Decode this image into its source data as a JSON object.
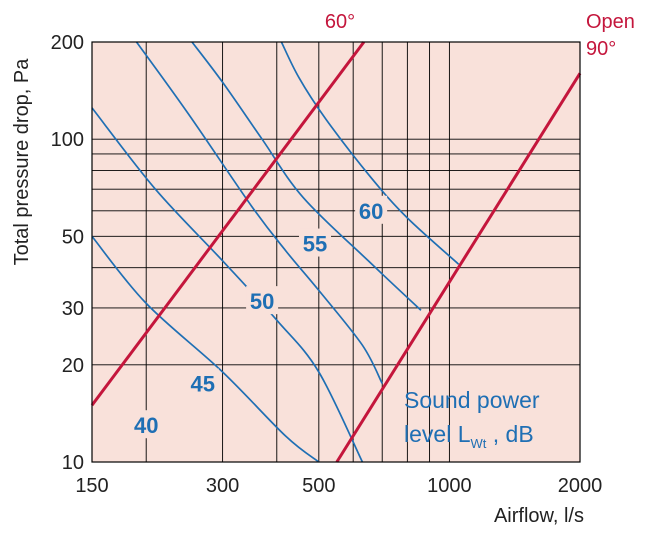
{
  "chart_data": {
    "type": "line",
    "xlabel": "Airflow, l/s",
    "ylabel": "Total pressure drop, Pa",
    "xscale": "log",
    "yscale": "log",
    "xlim": [
      150,
      2000
    ],
    "ylim": [
      10,
      200
    ],
    "x_ticks": [
      150,
      300,
      500,
      1000,
      2000
    ],
    "y_ticks": [
      10,
      20,
      30,
      50,
      100,
      200
    ],
    "x_grid": [
      150,
      200,
      300,
      400,
      500,
      600,
      700,
      800,
      900,
      1000,
      2000
    ],
    "y_grid": [
      10,
      20,
      30,
      40,
      50,
      60,
      70,
      80,
      90,
      100,
      200
    ],
    "grid": true,
    "colors": {
      "background": "#f9e1da",
      "grid": "#000000",
      "damper": "#c4163c",
      "sound": "#1f6fb4",
      "label": "#1f6fb4"
    },
    "damper_lines": [
      {
        "label": "60°",
        "points": [
          [
            150,
            15
          ],
          [
            635,
            200
          ]
        ]
      },
      {
        "label": "Open\n90°",
        "points": [
          [
            550,
            10
          ],
          [
            2000,
            160
          ]
        ]
      }
    ],
    "sound_series": [
      {
        "label": "",
        "points": [
          [
            150,
            50
          ],
          [
            200,
            31
          ],
          [
            300,
            19
          ],
          [
            420,
            12
          ],
          [
            500,
            10
          ]
        ]
      },
      {
        "label": "",
        "points": [
          [
            150,
            125
          ],
          [
            210,
            70
          ],
          [
            300,
            42
          ],
          [
            400,
            27.5
          ],
          [
            500,
            19
          ],
          [
            630,
            10
          ]
        ]
      },
      {
        "label": "",
        "points": [
          [
            190,
            200
          ],
          [
            250,
            120
          ],
          [
            350,
            62
          ],
          [
            420,
            45
          ],
          [
            500,
            34
          ],
          [
            630,
            23
          ],
          [
            700,
            17.5
          ]
        ]
      },
      {
        "label": "",
        "points": [
          [
            255,
            200
          ],
          [
            300,
            150
          ],
          [
            370,
            100
          ],
          [
            460,
            66
          ],
          [
            650,
            42
          ],
          [
            860,
            29.5
          ]
        ]
      },
      {
        "label": "",
        "points": [
          [
            410,
            200
          ],
          [
            450,
            155
          ],
          [
            520,
            115
          ],
          [
            660,
            76
          ],
          [
            800,
            57
          ],
          [
            1050,
            41
          ]
        ]
      }
    ],
    "sound_labels": [
      {
        "text": "40",
        "x": 200,
        "y": 13
      },
      {
        "text": "45",
        "x": 270,
        "y": 17.5
      },
      {
        "text": "50",
        "x": 370,
        "y": 31.5
      },
      {
        "text": "55",
        "x": 490,
        "y": 47.5
      },
      {
        "text": "60",
        "x": 660,
        "y": 60
      }
    ],
    "annotation": {
      "line1": "Sound power",
      "line2_prefix": "level L",
      "line2_sub": "Wt",
      "line2_suffix": " , dB"
    }
  }
}
